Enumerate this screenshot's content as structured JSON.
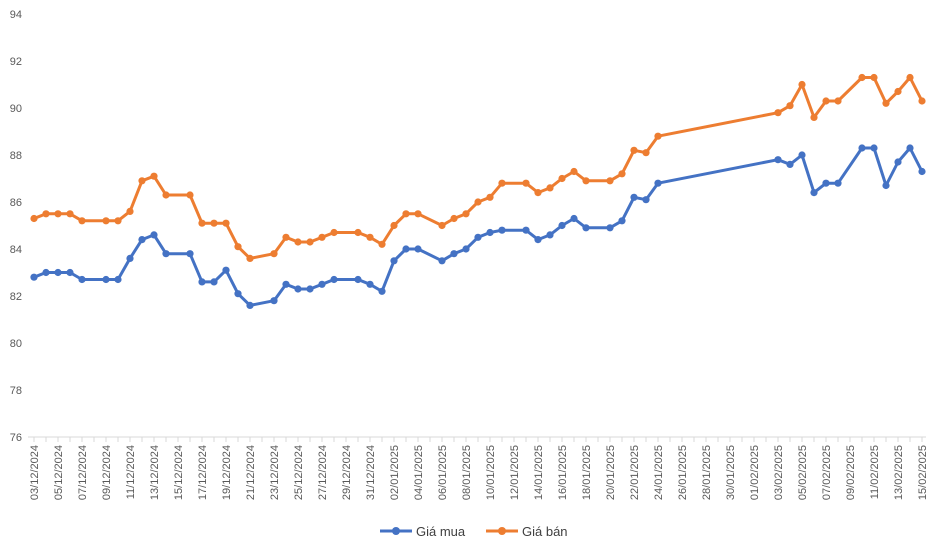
{
  "chart_data": {
    "type": "line",
    "title": "",
    "xlabel": "",
    "ylabel": "",
    "ylim": [
      76,
      94
    ],
    "yticks": [
      76,
      78,
      80,
      82,
      84,
      86,
      88,
      90,
      92,
      94
    ],
    "grid": false,
    "legend_position": "bottom",
    "x_tick_labels": [
      "03/12/2024",
      "05/12/2024",
      "07/12/2024",
      "09/12/2024",
      "11/12/2024",
      "13/12/2024",
      "15/12/2024",
      "17/12/2024",
      "19/12/2024",
      "21/12/2024",
      "23/12/2024",
      "25/12/2024",
      "27/12/2024",
      "29/12/2024",
      "31/12/2024",
      "02/01/2025",
      "04/01/2025",
      "06/01/2025",
      "08/01/2025",
      "10/01/2025",
      "12/01/2025",
      "14/01/2025",
      "16/01/2025",
      "18/01/2025",
      "20/01/2025",
      "22/01/2025",
      "24/01/2025",
      "26/01/2025",
      "28/01/2025",
      "30/01/2025",
      "01/02/2025",
      "03/02/2025",
      "05/02/2025",
      "07/02/2025",
      "09/02/2025",
      "11/02/2025",
      "13/02/2025",
      "15/02/2025"
    ],
    "x": [
      "03/12/2024",
      "04/12/2024",
      "05/12/2024",
      "06/12/2024",
      "07/12/2024",
      "09/12/2024",
      "10/12/2024",
      "11/12/2024",
      "12/12/2024",
      "13/12/2024",
      "14/12/2024",
      "16/12/2024",
      "17/12/2024",
      "18/12/2024",
      "19/12/2024",
      "20/12/2024",
      "21/12/2024",
      "23/12/2024",
      "24/12/2024",
      "25/12/2024",
      "26/12/2024",
      "27/12/2024",
      "28/12/2024",
      "30/12/2024",
      "31/12/2024",
      "01/01/2025",
      "02/01/2025",
      "03/01/2025",
      "04/01/2025",
      "06/01/2025",
      "07/01/2025",
      "08/01/2025",
      "09/01/2025",
      "10/01/2025",
      "11/01/2025",
      "13/01/2025",
      "14/01/2025",
      "15/01/2025",
      "16/01/2025",
      "17/01/2025",
      "18/01/2025",
      "20/01/2025",
      "21/01/2025",
      "22/01/2025",
      "23/01/2025",
      "24/01/2025",
      "03/02/2025",
      "04/02/2025",
      "05/02/2025",
      "06/02/2025",
      "07/02/2025",
      "08/02/2025",
      "10/02/2025",
      "11/02/2025",
      "12/02/2025",
      "13/02/2025",
      "14/02/2025",
      "15/02/2025"
    ],
    "series": [
      {
        "name": "Giá mua",
        "color": "#4472C4",
        "values": [
          82.8,
          83.0,
          83.0,
          83.0,
          82.7,
          82.7,
          82.7,
          83.6,
          84.4,
          84.6,
          83.8,
          83.8,
          82.6,
          82.6,
          83.1,
          82.1,
          81.6,
          81.8,
          82.5,
          82.3,
          82.3,
          82.5,
          82.7,
          82.7,
          82.5,
          82.2,
          83.5,
          84.0,
          84.0,
          83.5,
          83.8,
          84.0,
          84.5,
          84.7,
          84.8,
          84.8,
          84.4,
          84.6,
          85.0,
          85.3,
          84.9,
          84.9,
          85.2,
          86.2,
          86.1,
          86.8,
          87.8,
          87.6,
          88.0,
          86.4,
          86.8,
          86.8,
          88.3,
          88.3,
          86.7,
          87.7,
          88.3,
          87.3
        ]
      },
      {
        "name": "Giá bán",
        "color": "#ED7D31",
        "values": [
          85.3,
          85.5,
          85.5,
          85.5,
          85.2,
          85.2,
          85.2,
          85.6,
          86.9,
          87.1,
          86.3,
          86.3,
          85.1,
          85.1,
          85.1,
          84.1,
          83.6,
          83.8,
          84.5,
          84.3,
          84.3,
          84.5,
          84.7,
          84.7,
          84.5,
          84.2,
          85.0,
          85.5,
          85.5,
          85.0,
          85.3,
          85.5,
          86.0,
          86.2,
          86.8,
          86.8,
          86.4,
          86.6,
          87.0,
          87.3,
          86.9,
          86.9,
          87.2,
          88.2,
          88.1,
          88.8,
          89.8,
          90.1,
          91.0,
          89.6,
          90.3,
          90.3,
          91.3,
          91.3,
          90.2,
          90.7,
          91.3,
          90.3
        ]
      }
    ]
  }
}
